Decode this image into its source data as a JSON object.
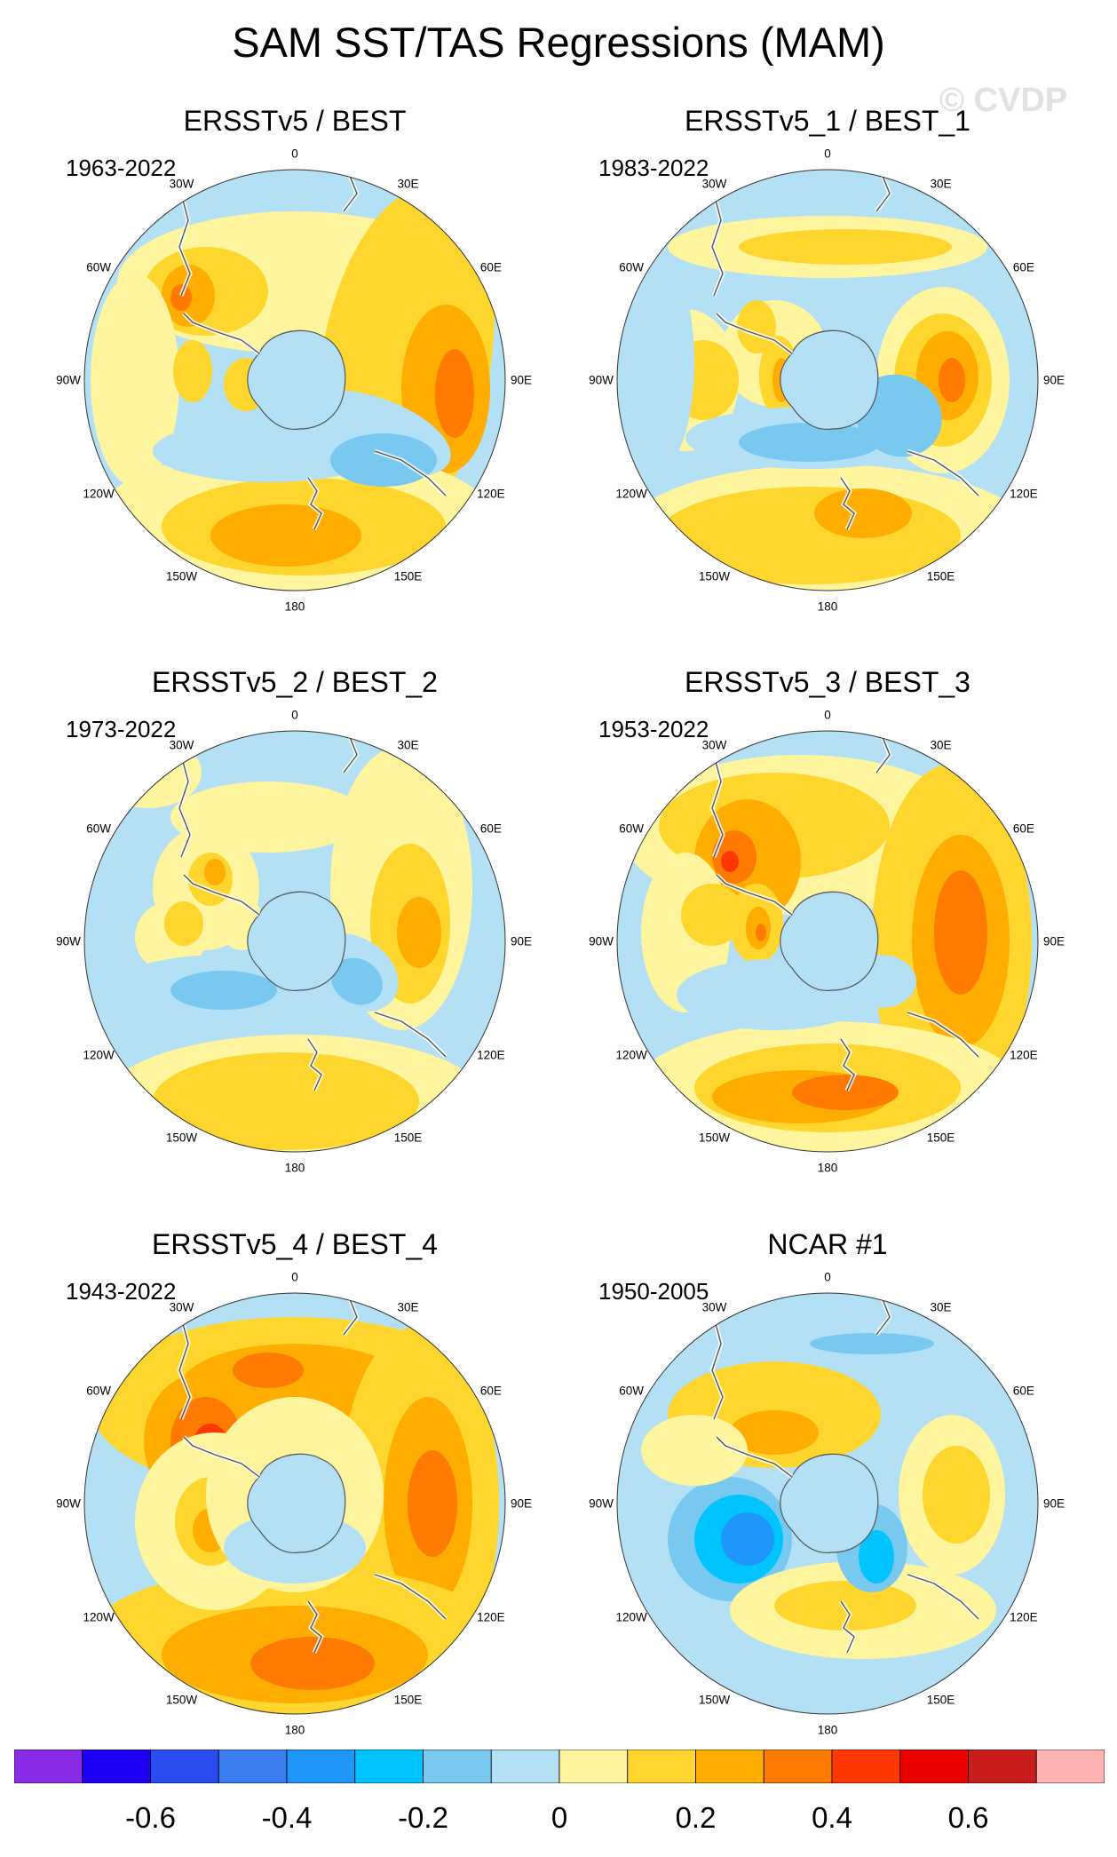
{
  "title": "SAM SST/TAS Regressions (MAM)",
  "watermark": "© CVDP",
  "longitude_labels": {
    "lon_0": "0",
    "lon_30e": "30E",
    "lon_60e": "60E",
    "lon_90e": "90E",
    "lon_120e": "120E",
    "lon_150e": "150E",
    "lon_180": "180",
    "lon_150w": "150W",
    "lon_120w": "120W",
    "lon_90w": "90W",
    "lon_60w": "60W",
    "lon_30w": "30W"
  },
  "panels": [
    {
      "title": "ERSSTv5 / BEST",
      "period": "1963-2022"
    },
    {
      "title": "ERSSTv5_1 / BEST_1",
      "period": "1983-2022"
    },
    {
      "title": "ERSSTv5_2 / BEST_2",
      "period": "1973-2022"
    },
    {
      "title": "ERSSTv5_3 / BEST_3",
      "period": "1953-2022"
    },
    {
      "title": "ERSSTv5_4 / BEST_4",
      "period": "1943-2022"
    },
    {
      "title": "NCAR #1",
      "period": "1950-2005"
    }
  ],
  "colorbar": {
    "colors": [
      "#8a2be8",
      "#1d00f5",
      "#2a4cf0",
      "#3a7ef0",
      "#1e96fa",
      "#00c4ff",
      "#78c8f0",
      "#b3e0f5",
      "#fff59f",
      "#ffd62e",
      "#ffad00",
      "#ff7a00",
      "#ff3700",
      "#eb0000",
      "#cb1d1d",
      "#ffb3b3"
    ],
    "tick_labels": [
      "-0.6",
      "-0.4",
      "-0.2",
      "0",
      "0.2",
      "0.4",
      "0.6"
    ]
  },
  "colors": {
    "map_base": "#b3e0f5",
    "land": "#ffffff",
    "coast": "#555555"
  }
}
